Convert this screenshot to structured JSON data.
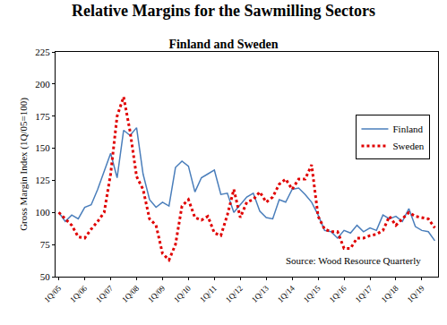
{
  "chart_data": {
    "type": "line",
    "title": "Relative Margins for the Sawmilling Sectors",
    "subtitle": "Finland and Sweden",
    "y_label": "Gross Margin Index (1Q/05=100)",
    "annotations": [
      "Source: Wood Resource Quarterly"
    ],
    "categories": [
      "1Q/05",
      null,
      null,
      null,
      "1Q/06",
      null,
      null,
      null,
      "1Q/07",
      null,
      null,
      null,
      "1Q/08",
      null,
      null,
      null,
      "1Q/09",
      null,
      null,
      null,
      "1Q/10",
      null,
      null,
      null,
      "1Q/11",
      null,
      null,
      null,
      "1Q/12",
      null,
      null,
      null,
      "1Q/13",
      null,
      null,
      null,
      "1Q/14",
      null,
      null,
      null,
      "1Q/15",
      null,
      null,
      null,
      "1Q/16",
      null,
      null,
      null,
      "1Q/17",
      null,
      null,
      null,
      "1Q/18",
      null,
      null,
      null,
      "1Q/19",
      null,
      null
    ],
    "series": [
      {
        "name": "Finland",
        "color": "#4a7ebb",
        "line_style": "solid",
        "values": [
          100,
          93,
          98,
          95,
          104,
          106,
          118,
          132,
          146,
          127,
          164,
          160,
          166,
          130,
          110,
          104,
          108,
          105,
          135,
          140,
          136,
          116,
          127,
          130,
          133,
          114,
          115,
          100,
          106,
          112,
          115,
          101,
          96,
          95,
          110,
          108,
          118,
          119,
          114,
          108,
          98,
          86,
          85,
          80,
          86,
          84,
          90,
          85,
          88,
          86,
          98,
          95,
          97,
          93,
          103,
          89,
          86,
          85,
          78
        ]
      },
      {
        "name": "Sweden",
        "color": "#e00000",
        "line_style": "dot",
        "values": [
          100,
          95,
          90,
          81,
          80,
          87,
          93,
          100,
          130,
          175,
          190,
          163,
          128,
          118,
          95,
          90,
          68,
          63,
          75,
          105,
          110,
          96,
          94,
          97,
          84,
          82,
          98,
          118,
          96,
          108,
          110,
          116,
          108,
          112,
          122,
          126,
          118,
          126,
          126,
          137,
          97,
          87,
          85,
          85,
          72,
          72,
          80,
          80,
          82,
          83,
          86,
          97,
          90,
          95,
          100,
          97,
          96,
          95,
          88
        ]
      }
    ],
    "ylim": [
      50,
      225
    ],
    "yticks": [
      50,
      75,
      100,
      125,
      150,
      175,
      200,
      225
    ],
    "grid": false,
    "legend": "right"
  }
}
